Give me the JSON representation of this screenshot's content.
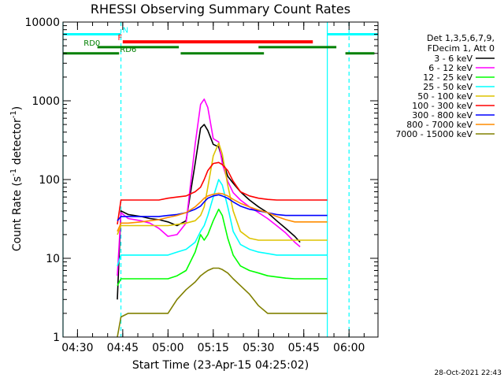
{
  "chart_data": {
    "type": "line",
    "title": "RHESSI Observing Summary Count Rates",
    "xlabel": "Start Time (23-Apr-15 04:25:02)",
    "ylabel_main": "Count Rate (s",
    "ylabel_sup1": "-1",
    "ylabel_mid": " detector",
    "ylabel_sup2": "-1",
    "ylabel_end": ")",
    "yscale": "log",
    "xlim": [
      4.42,
      6.16
    ],
    "ylim": [
      1,
      10000
    ],
    "xticks": [
      {
        "t": 4.5,
        "label": "04:30"
      },
      {
        "t": 4.75,
        "label": "04:45"
      },
      {
        "t": 5.0,
        "label": "05:00"
      },
      {
        "t": 5.25,
        "label": "05:15"
      },
      {
        "t": 5.5,
        "label": "05:30"
      },
      {
        "t": 5.75,
        "label": "05:45"
      },
      {
        "t": 6.0,
        "label": "06:00"
      }
    ],
    "yticks": [
      {
        "v": 1,
        "label": "1"
      },
      {
        "v": 10,
        "label": "10"
      },
      {
        "v": 100,
        "label": "100"
      },
      {
        "v": 1000,
        "label": "1000"
      },
      {
        "v": 10000,
        "label": "10000"
      }
    ],
    "legend_header": [
      "Det 1,3,5,6,7,9,",
      "FDecim 1, Att 0"
    ],
    "legend_position": "right",
    "series": [
      {
        "name": "3 - 6 keV",
        "color": "#000000",
        "x": [
          4.72,
          4.74,
          4.78,
          4.85,
          4.9,
          4.95,
          5.0,
          5.05,
          5.1,
          5.15,
          5.18,
          5.2,
          5.22,
          5.25,
          5.28,
          5.3,
          5.33,
          5.36,
          5.4,
          5.45,
          5.5,
          5.55,
          5.6,
          5.65,
          5.7,
          5.73
        ],
        "y": [
          3,
          40,
          36,
          34,
          32,
          31,
          29,
          26,
          30,
          160,
          450,
          500,
          420,
          280,
          260,
          180,
          110,
          90,
          70,
          55,
          45,
          38,
          30,
          24,
          19,
          16
        ]
      },
      {
        "name": "6 - 12 keV",
        "color": "#ff00ff",
        "x": [
          4.72,
          4.74,
          4.78,
          4.85,
          4.9,
          4.95,
          5.0,
          5.05,
          5.1,
          5.15,
          5.18,
          5.2,
          5.22,
          5.25,
          5.28,
          5.3,
          5.33,
          5.36,
          5.4,
          5.45,
          5.5,
          5.55,
          5.6,
          5.65,
          5.7,
          5.73
        ],
        "y": [
          6,
          38,
          32,
          30,
          28,
          24,
          19,
          20,
          28,
          280,
          900,
          1050,
          820,
          330,
          300,
          160,
          95,
          68,
          55,
          45,
          38,
          32,
          26,
          21,
          16,
          14
        ]
      },
      {
        "name": "12 - 25 keV",
        "color": "#00ff00",
        "x": [
          4.72,
          4.74,
          4.78,
          4.85,
          4.9,
          4.95,
          5.0,
          5.05,
          5.1,
          5.15,
          5.18,
          5.2,
          5.22,
          5.25,
          5.28,
          5.3,
          5.33,
          5.36,
          5.4,
          5.45,
          5.5,
          5.55,
          5.6,
          5.65,
          5.7,
          5.73,
          5.88
        ],
        "y": [
          4.5,
          5.5,
          5.5,
          5.5,
          5.5,
          5.5,
          5.5,
          6,
          7,
          12,
          20,
          17,
          20,
          30,
          42,
          35,
          18,
          11,
          8,
          7,
          6.5,
          6,
          5.8,
          5.6,
          5.5,
          5.5,
          5.5
        ]
      },
      {
        "name": "25 - 50 keV",
        "color": "#00ffff",
        "x": [
          4.72,
          4.74,
          4.78,
          4.85,
          4.9,
          4.95,
          5.0,
          5.05,
          5.1,
          5.15,
          5.18,
          5.2,
          5.22,
          5.25,
          5.28,
          5.3,
          5.33,
          5.36,
          5.4,
          5.45,
          5.5,
          5.55,
          5.6,
          5.65,
          5.7,
          5.73,
          5.88
        ],
        "y": [
          8,
          11,
          11,
          11,
          11,
          11,
          11,
          12,
          13,
          16,
          22,
          26,
          35,
          60,
          100,
          85,
          45,
          22,
          15,
          13,
          12,
          11.5,
          11,
          11,
          11,
          11,
          11
        ]
      },
      {
        "name": "50 - 100 keV",
        "color": "#ddc300",
        "x": [
          4.72,
          4.74,
          4.78,
          4.85,
          4.9,
          4.95,
          5.0,
          5.05,
          5.1,
          5.15,
          5.18,
          5.2,
          5.22,
          5.25,
          5.28,
          5.3,
          5.33,
          5.36,
          5.4,
          5.45,
          5.5,
          5.55,
          5.6,
          5.65,
          5.7,
          5.73,
          5.88
        ],
        "y": [
          20,
          26,
          26,
          26,
          26,
          26,
          26,
          27,
          28,
          30,
          35,
          45,
          80,
          200,
          290,
          210,
          85,
          40,
          22,
          18,
          17,
          17,
          17,
          17,
          17,
          17,
          17
        ]
      },
      {
        "name": "100 - 300 keV",
        "color": "#ff0000",
        "x": [
          4.72,
          4.74,
          4.78,
          4.85,
          4.9,
          4.95,
          5.0,
          5.05,
          5.1,
          5.15,
          5.18,
          5.2,
          5.22,
          5.25,
          5.28,
          5.3,
          5.33,
          5.36,
          5.4,
          5.45,
          5.5,
          5.55,
          5.6,
          5.65,
          5.7,
          5.73,
          5.88
        ],
        "y": [
          27,
          55,
          55,
          55,
          55,
          55,
          58,
          60,
          62,
          70,
          80,
          100,
          130,
          160,
          165,
          155,
          130,
          95,
          70,
          62,
          58,
          56,
          55,
          55,
          55,
          55,
          55
        ]
      },
      {
        "name": "300 - 800 keV",
        "color": "#0000ff",
        "x": [
          4.72,
          4.74,
          4.78,
          4.85,
          4.9,
          4.95,
          5.0,
          5.05,
          5.1,
          5.15,
          5.18,
          5.2,
          5.22,
          5.25,
          5.28,
          5.3,
          5.33,
          5.36,
          5.4,
          5.45,
          5.5,
          5.55,
          5.6,
          5.65,
          5.7,
          5.73,
          5.88
        ],
        "y": [
          30,
          34,
          34,
          34,
          34,
          34,
          35,
          36,
          38,
          42,
          46,
          52,
          58,
          62,
          64,
          62,
          58,
          52,
          46,
          42,
          40,
          38,
          36,
          35,
          35,
          35,
          35
        ]
      },
      {
        "name": "800 - 7000 keV",
        "color": "#ff8c00",
        "x": [
          4.72,
          4.74,
          4.78,
          4.85,
          4.9,
          4.95,
          5.0,
          5.05,
          5.1,
          5.15,
          5.18,
          5.2,
          5.22,
          5.25,
          5.28,
          5.3,
          5.33,
          5.36,
          5.4,
          5.45,
          5.5,
          5.55,
          5.6,
          5.65,
          5.7,
          5.73,
          5.88
        ],
        "y": [
          22,
          28,
          28,
          29,
          30,
          31,
          33,
          35,
          38,
          45,
          52,
          58,
          62,
          65,
          67,
          66,
          62,
          56,
          50,
          45,
          41,
          38,
          34,
          31,
          29,
          29,
          29
        ]
      },
      {
        "name": "7000 - 15000 keV",
        "color": "#808000",
        "x": [
          4.72,
          4.74,
          4.78,
          4.85,
          4.9,
          4.95,
          5.0,
          5.05,
          5.1,
          5.15,
          5.18,
          5.2,
          5.22,
          5.25,
          5.28,
          5.3,
          5.33,
          5.36,
          5.4,
          5.45,
          5.5,
          5.55,
          5.6,
          5.65,
          5.7,
          5.73,
          5.88
        ],
        "y": [
          1,
          1.8,
          2,
          2,
          2,
          2,
          2,
          3,
          4,
          5,
          6,
          6.5,
          7,
          7.5,
          7.5,
          7.2,
          6.5,
          5.5,
          4.5,
          3.5,
          2.5,
          2,
          2,
          2,
          2,
          2,
          2
        ]
      }
    ],
    "segments": [
      {
        "label": "N",
        "color": "#00ffff",
        "y": 7000,
        "x1": 4.42,
        "x2": 4.74,
        "label_x": 4.765
      },
      {
        "label": "",
        "color": "#00ffff",
        "y": 7000,
        "x1": 5.88,
        "x2": 6.16,
        "label_x": 0
      },
      {
        "label": "F",
        "color": "#ff0000",
        "y": 5600,
        "x1": 4.75,
        "x2": 5.8,
        "label_x": 4.735
      },
      {
        "label": "RD0",
        "color": "#008000",
        "y": 4800,
        "x1": 4.61,
        "x2": 5.06,
        "label_x": 4.58
      },
      {
        "label": "RD6",
        "color": "#008000",
        "y": 4000,
        "x1": 4.42,
        "x2": 4.73,
        "label_x": 4.78
      },
      {
        "label": "",
        "color": "#008000",
        "y": 4000,
        "x1": 5.07,
        "x2": 5.53,
        "label_x": 0
      },
      {
        "label": "",
        "color": "#008000",
        "y": 4800,
        "x1": 5.5,
        "x2": 5.93,
        "label_x": 0
      },
      {
        "label": "",
        "color": "#008000",
        "y": 4000,
        "x1": 5.98,
        "x2": 6.14,
        "label_x": 0
      }
    ],
    "vlines": [
      {
        "t": 4.42,
        "style": "solid",
        "color": "#00ffff"
      },
      {
        "t": 4.74,
        "style": "dashed",
        "color": "#00ffff"
      },
      {
        "t": 5.88,
        "style": "solid",
        "color": "#00ffff"
      },
      {
        "t": 6.0,
        "style": "dashed",
        "color": "#00ffff"
      }
    ]
  },
  "footer_timestamp": "28-Oct-2021 22:43"
}
